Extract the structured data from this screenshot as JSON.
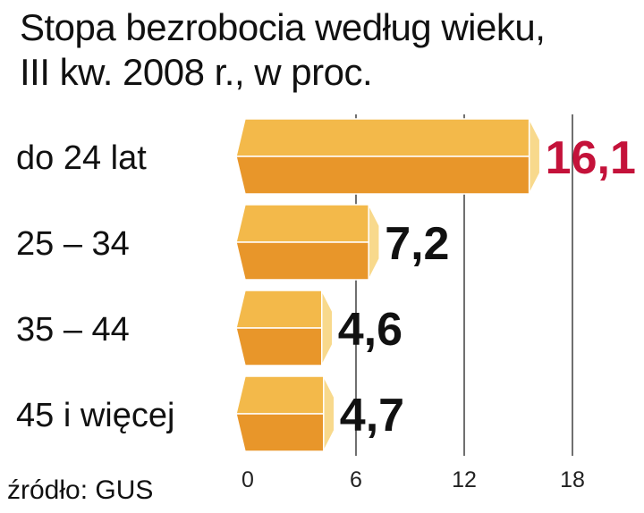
{
  "title_lines": [
    "Stopa bezrobocia według wieku,",
    "III kw. 2008 r., w proc."
  ],
  "source": "źródło: GUS",
  "colors": {
    "bar_top": "#f3b94a",
    "bar_bottom": "#e8962a",
    "bar_tip": "#f8d98c",
    "highlight_value": "#c4123a",
    "value": "#111111",
    "grid": "#222222"
  },
  "chart_data": {
    "type": "bar",
    "orientation": "horizontal",
    "title": "Stopa bezrobocia według wieku, III kw. 2008 r., w proc.",
    "categories": [
      "do 24 lat",
      "25 – 34",
      "35 – 44",
      "45 i więcej"
    ],
    "values": [
      16.1,
      7.2,
      4.6,
      4.7
    ],
    "value_labels": [
      "16,1",
      "7,2",
      "4,6",
      "4,7"
    ],
    "highlight_index": 0,
    "xlim": [
      0,
      18
    ],
    "xticks": [
      0,
      6,
      12,
      18
    ],
    "xtick_labels": [
      "0",
      "6",
      "12",
      "18"
    ],
    "grid": true,
    "legend": "none"
  }
}
